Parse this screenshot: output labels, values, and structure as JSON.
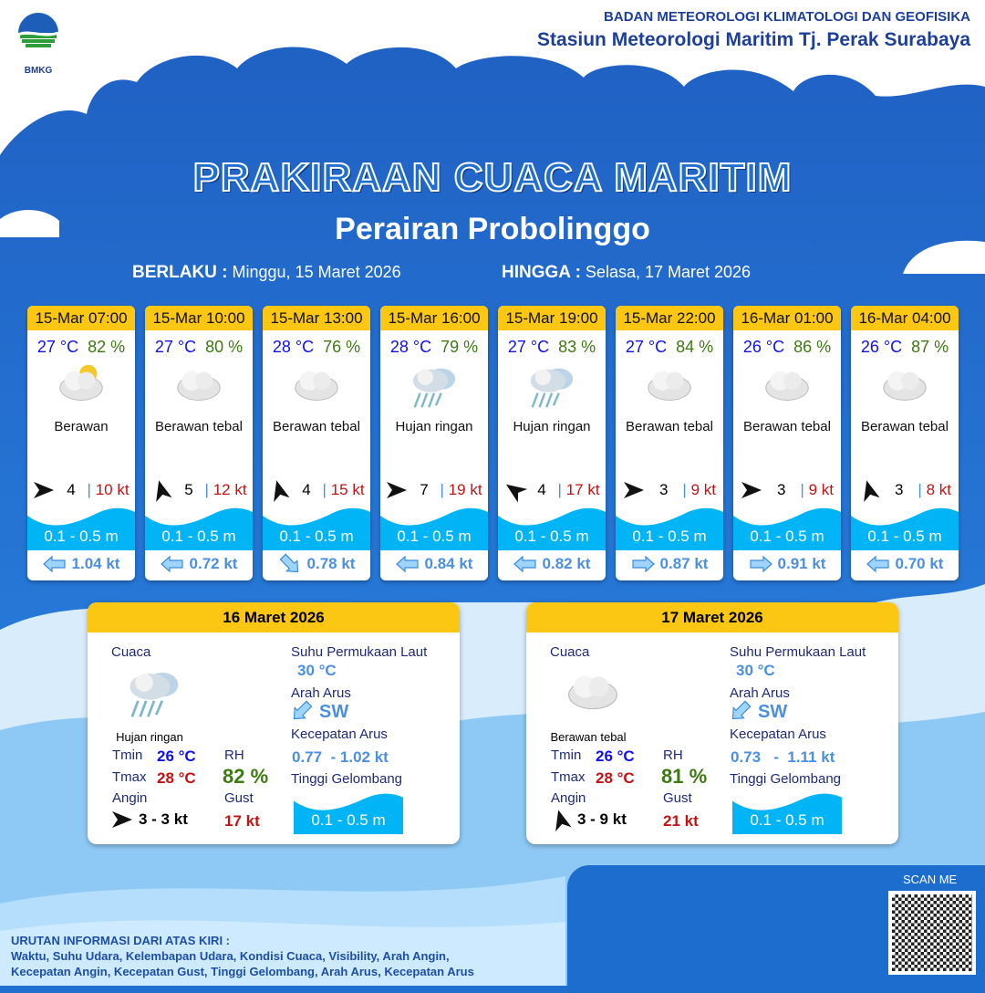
{
  "header": {
    "agency": "BADAN METEOROLOGI KLIMATOLOGI DAN GEOFISIKA",
    "station": "Stasiun Meteorologi Maritim Tj. Perak Surabaya",
    "logo_text": "BMKG"
  },
  "title": "PRAKIRAAN CUACA MARITIM",
  "subtitle": "Perairan Probolinggo",
  "validity": {
    "from_label": "BERLAKU :",
    "from": "Minggu, 15 Maret 2026",
    "to_label": "HINGGA :",
    "to": "Selasa, 17 Maret 2026"
  },
  "forecasts": [
    {
      "time": "15-Mar 07:00",
      "temp": "27 °C",
      "rh": "82 %",
      "icon": "partly-cloudy-icon",
      "cond": "Berawan",
      "wind_dir_deg": 0,
      "wind": "4",
      "gust": "10 kt",
      "wave": "0.1 - 0.5 m",
      "cur_dir_deg": 180,
      "cur": "1.04 kt"
    },
    {
      "time": "15-Mar 10:00",
      "temp": "27 °C",
      "rh": "80 %",
      "icon": "cloudy-icon",
      "cond": "Berawan tebal",
      "wind_dir_deg": -105,
      "wind": "5",
      "gust": "12 kt",
      "wave": "0.1 - 0.5 m",
      "cur_dir_deg": 180,
      "cur": "0.72 kt"
    },
    {
      "time": "15-Mar 13:00",
      "temp": "28 °C",
      "rh": "76 %",
      "icon": "cloudy-icon",
      "cond": "Berawan tebal",
      "wind_dir_deg": -105,
      "wind": "4",
      "gust": "15 kt",
      "wave": "0.1 - 0.5 m",
      "cur_dir_deg": 45,
      "cur": "0.78 kt"
    },
    {
      "time": "15-Mar 16:00",
      "temp": "28 °C",
      "rh": "79 %",
      "icon": "rain-icon",
      "cond": "Hujan ringan",
      "wind_dir_deg": 0,
      "wind": "7",
      "gust": "19 kt",
      "wave": "0.1 - 0.5 m",
      "cur_dir_deg": 180,
      "cur": "0.84 kt"
    },
    {
      "time": "15-Mar 19:00",
      "temp": "27 °C",
      "rh": "83 %",
      "icon": "rain-icon",
      "cond": "Hujan ringan",
      "wind_dir_deg": -145,
      "wind": "4",
      "gust": "17 kt",
      "wave": "0.1 - 0.5 m",
      "cur_dir_deg": 180,
      "cur": "0.82 kt"
    },
    {
      "time": "15-Mar 22:00",
      "temp": "27 °C",
      "rh": "84 %",
      "icon": "cloudy-icon",
      "cond": "Berawan tebal",
      "wind_dir_deg": 0,
      "wind": "3",
      "gust": "9 kt",
      "wave": "0.1 - 0.5 m",
      "cur_dir_deg": 0,
      "cur": "0.87 kt"
    },
    {
      "time": "16-Mar 01:00",
      "temp": "26 °C",
      "rh": "86 %",
      "icon": "cloudy-icon",
      "cond": "Berawan tebal",
      "wind_dir_deg": 0,
      "wind": "3",
      "gust": "9 kt",
      "wave": "0.1 - 0.5 m",
      "cur_dir_deg": 0,
      "cur": "0.91 kt"
    },
    {
      "time": "16-Mar 04:00",
      "temp": "26 °C",
      "rh": "87 %",
      "icon": "cloudy-icon",
      "cond": "Berawan tebal",
      "wind_dir_deg": -105,
      "wind": "3",
      "gust": "8 kt",
      "wave": "0.1 - 0.5 m",
      "cur_dir_deg": 180,
      "cur": "0.70 kt"
    }
  ],
  "labels": {
    "cuaca": "Cuaca",
    "tmin": "Tmin",
    "tmax": "Tmax",
    "angin": "Angin",
    "rh": "RH",
    "gust": "Gust",
    "sst": "Suhu Permukaan Laut",
    "arah_arus": "Arah Arus",
    "kec_arus": "Kecepatan Arus",
    "tinggi": "Tinggi Gelombang"
  },
  "daily": [
    {
      "date": "16 Maret 2026",
      "icon": "rain-icon",
      "cond": "Hujan ringan",
      "tmin": "26 °C",
      "tmax": "28 °C",
      "rh": "82 %",
      "wind_dir_deg": 0,
      "angin": "3  - 3 kt",
      "gust": "17 kt",
      "sst": "30 °C",
      "cur_dir_deg": 135,
      "arah": "SW",
      "kec": "0.77  - 1.02 kt",
      "wave": "0.1 - 0.5 m"
    },
    {
      "date": "17 Maret 2026",
      "icon": "cloudy-icon",
      "cond": "Berawan tebal",
      "tmin": "26 °C",
      "tmax": "28 °C",
      "rh": "81 %",
      "wind_dir_deg": -105,
      "angin": "3  - 9 kt",
      "gust": "21 kt",
      "sst": "30 °C",
      "cur_dir_deg": 135,
      "arah": "SW",
      "kec": "0.73   -  1.11 kt",
      "wave": "0.1 - 0.5 m"
    }
  ],
  "footer": {
    "heading": "URUTAN INFORMASI DARI ATAS KIRI :",
    "line1": "Waktu, Suhu Udara, Kelembapan Udara, Kondisi Cuaca, Visibility, Arah Angin,",
    "line2": "Kecepatan Angin, Kecepatan Gust, Tinggi Gelombang, Arah Arus, Kecepatan Arus",
    "scan": "SCAN ME"
  },
  "colors": {
    "header_yellow": "#fcc713",
    "background_blue": "#1e6fd0",
    "wave": "#00b4f5",
    "temp": "#1010f0",
    "rh": "#3d7a12",
    "gust": "#c41212",
    "current": "#4c8fe0"
  }
}
